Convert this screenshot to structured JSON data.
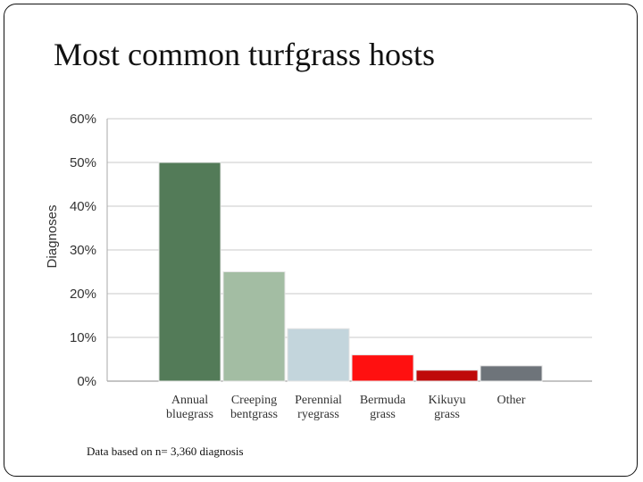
{
  "slide": {
    "title": "Most common turfgrass hosts",
    "footnote": "Data based on n= 3,360 diagnosis"
  },
  "chart_data": {
    "type": "bar",
    "title": "Most common turfgrass hosts",
    "xlabel": "",
    "ylabel": "Diagnoses",
    "ylim": [
      0,
      60
    ],
    "yticks": [
      "0%",
      "10%",
      "20%",
      "30%",
      "40%",
      "50%",
      "60%"
    ],
    "categories": [
      [
        "Annual",
        "bluegrass"
      ],
      [
        "Creeping",
        "bentgrass"
      ],
      [
        "Perennial",
        "ryegrass"
      ],
      [
        "Bermuda",
        "grass"
      ],
      [
        "Kikuyu",
        "grass"
      ],
      [
        "Other"
      ]
    ],
    "values": [
      50,
      25,
      12,
      6,
      2.5,
      3.5
    ],
    "colors": [
      "#537b58",
      "#a3bda3",
      "#c3d5dc",
      "#ff1010",
      "#bf0a0a",
      "#6e747a"
    ],
    "grid": true,
    "legend": "none"
  }
}
